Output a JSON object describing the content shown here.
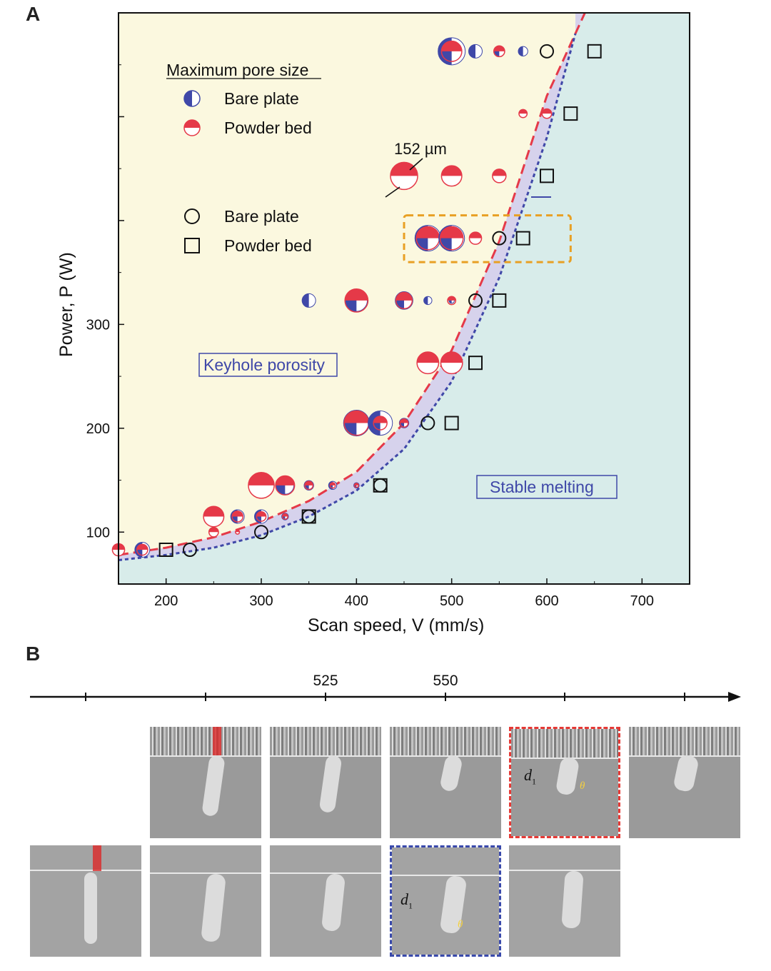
{
  "panel_a_label": "A",
  "panel_b_label": "B",
  "chart_data": {
    "type": "scatter",
    "xlabel": "Scan speed, V (mm/s)",
    "ylabel": "Power, P (W)",
    "xlim": [
      150,
      750
    ],
    "ylim": [
      50,
      600
    ],
    "xticks": [
      200,
      300,
      400,
      500,
      600,
      700
    ],
    "yticks_labeled": [
      100,
      200,
      300
    ],
    "legend_title": "Maximum pore size",
    "legend": [
      {
        "label": "Bare plate",
        "marker": "half-circle-blue"
      },
      {
        "label": "Powder bed",
        "marker": "half-circle-red"
      },
      {
        "label": "Bare plate",
        "marker": "open-circle"
      },
      {
        "label": "Powder bed",
        "marker": "open-square"
      }
    ],
    "annotation": "152 µm",
    "regions": [
      {
        "label": "Keyhole porosity",
        "color": "#fbf8df"
      },
      {
        "label": "Stable melting",
        "color": "#d8ecea"
      },
      {
        "label": "",
        "color": "#d6d2ec"
      }
    ],
    "colors": {
      "blue": "#3f48a8",
      "red": "#e53948",
      "orange": "#e8a024"
    },
    "boundary_bare": [
      [
        150,
        73
      ],
      [
        200,
        78
      ],
      [
        250,
        85
      ],
      [
        300,
        97
      ],
      [
        350,
        115
      ],
      [
        400,
        140
      ],
      [
        450,
        180
      ],
      [
        500,
        245
      ],
      [
        550,
        345
      ],
      [
        600,
        480
      ],
      [
        630,
        580
      ]
    ],
    "boundary_powder": [
      [
        150,
        78
      ],
      [
        200,
        85
      ],
      [
        250,
        95
      ],
      [
        300,
        110
      ],
      [
        350,
        130
      ],
      [
        400,
        158
      ],
      [
        450,
        205
      ],
      [
        500,
        275
      ],
      [
        550,
        380
      ],
      [
        600,
        520
      ],
      [
        640,
        600
      ]
    ],
    "pores": [
      {
        "v": 150,
        "p": 83,
        "blue": 0,
        "red": 0.45
      },
      {
        "v": 175,
        "p": 83,
        "blue": 0.55,
        "red": 0.4
      },
      {
        "v": 250,
        "p": 115,
        "blue": 0,
        "red": 0.75
      },
      {
        "v": 250,
        "p": 100,
        "blue": 0,
        "red": 0.35
      },
      {
        "v": 275,
        "p": 115,
        "blue": 0.5,
        "red": 0.4
      },
      {
        "v": 275,
        "p": 100,
        "blue": 0,
        "red": 0.15
      },
      {
        "v": 300,
        "p": 145,
        "blue": 0,
        "red": 0.95
      },
      {
        "v": 300,
        "p": 115,
        "blue": 0.5,
        "red": 0.35
      },
      {
        "v": 325,
        "p": 145,
        "blue": 0.65,
        "red": 0.7
      },
      {
        "v": 325,
        "p": 115,
        "blue": 0.25,
        "red": 0.2
      },
      {
        "v": 350,
        "p": 145,
        "blue": 0.35,
        "red": 0.3
      },
      {
        "v": 375,
        "p": 145,
        "blue": 0.3,
        "red": 0.2
      },
      {
        "v": 400,
        "p": 145,
        "blue": 0.2,
        "red": 0.15
      },
      {
        "v": 400,
        "p": 205,
        "blue": 0.95,
        "red": 0.9
      },
      {
        "v": 425,
        "p": 205,
        "blue": 0.9,
        "red": 0.5
      },
      {
        "v": 450,
        "p": 205,
        "blue": 0.35,
        "red": 0.3
      },
      {
        "v": 350,
        "p": 323,
        "blue": 0.5,
        "red": 0
      },
      {
        "v": 400,
        "p": 323,
        "blue": 0.8,
        "red": 0.85
      },
      {
        "v": 450,
        "p": 323,
        "blue": 0.65,
        "red": 0.6
      },
      {
        "v": 475,
        "p": 323,
        "blue": 0.3,
        "red": 0
      },
      {
        "v": 500,
        "p": 323,
        "blue": 0.2,
        "red": 0.3
      },
      {
        "v": 475,
        "p": 263,
        "blue": 0,
        "red": 0.8
      },
      {
        "v": 500,
        "p": 263,
        "blue": 0,
        "red": 0.8
      },
      {
        "v": 475,
        "p": 383,
        "blue": 0.95,
        "red": 0.85
      },
      {
        "v": 500,
        "p": 383,
        "blue": 0.95,
        "red": 0.85
      },
      {
        "v": 525,
        "p": 383,
        "blue": 0,
        "red": 0.45
      },
      {
        "v": 450,
        "p": 443,
        "blue": 0,
        "red": 1.0
      },
      {
        "v": 500,
        "p": 443,
        "blue": 0,
        "red": 0.75
      },
      {
        "v": 550,
        "p": 443,
        "blue": 0,
        "red": 0.5
      },
      {
        "v": 500,
        "p": 563,
        "blue": 1.0,
        "red": 0.75
      },
      {
        "v": 525,
        "p": 563,
        "blue": 0.5,
        "red": 0
      },
      {
        "v": 550,
        "p": 563,
        "blue": 0.4,
        "red": 0.4
      },
      {
        "v": 575,
        "p": 563,
        "blue": 0.35,
        "red": 0
      },
      {
        "v": 575,
        "p": 503,
        "blue": 0,
        "red": 0.3
      },
      {
        "v": 600,
        "p": 503,
        "blue": 0,
        "red": 0.35
      }
    ],
    "open_circles": [
      {
        "v": 225,
        "p": 83
      },
      {
        "v": 300,
        "p": 100
      },
      {
        "v": 350,
        "p": 115
      },
      {
        "v": 425,
        "p": 145
      },
      {
        "v": 475,
        "p": 205
      },
      {
        "v": 525,
        "p": 323
      },
      {
        "v": 550,
        "p": 383
      },
      {
        "v": 600,
        "p": 563
      }
    ],
    "open_squares": [
      {
        "v": 200,
        "p": 83
      },
      {
        "v": 350,
        "p": 115
      },
      {
        "v": 425,
        "p": 145
      },
      {
        "v": 500,
        "p": 205
      },
      {
        "v": 525,
        "p": 263
      },
      {
        "v": 550,
        "p": 323
      },
      {
        "v": 575,
        "p": 383
      },
      {
        "v": 600,
        "p": 443
      },
      {
        "v": 625,
        "p": 503
      },
      {
        "v": 650,
        "p": 563
      }
    ]
  },
  "panel_b": {
    "axis_ticks": [
      "",
      "",
      "525",
      "550",
      "",
      ""
    ],
    "d1_label": "d",
    "d1_sub": "1",
    "theta_label": "θ"
  }
}
